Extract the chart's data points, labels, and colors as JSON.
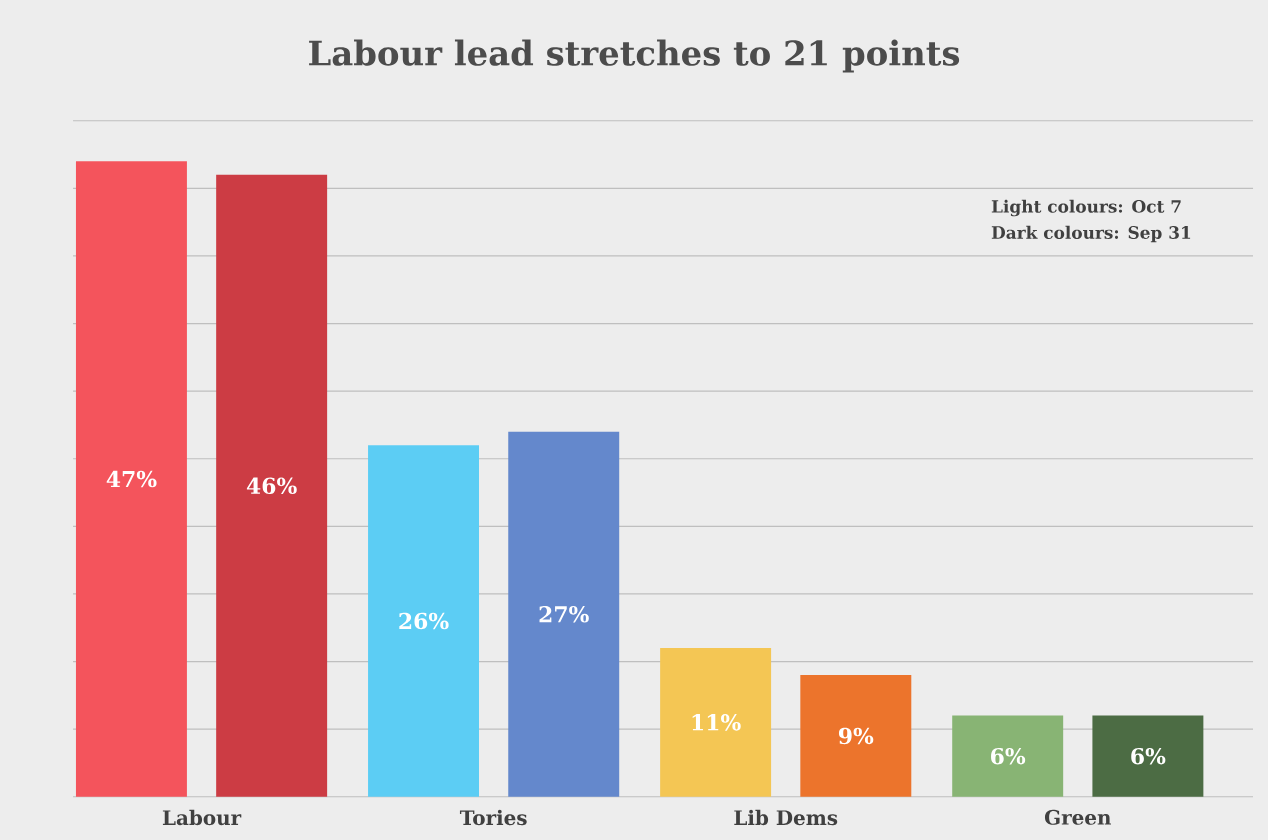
{
  "chart_data": {
    "type": "bar",
    "title": "Labour lead stretches to 21 points",
    "categories": [
      "Labour",
      "Tories",
      "Lib Dems",
      "Green"
    ],
    "series": [
      {
        "colors": [
          "#f4545c",
          "#5ccdf4",
          "#f4c654",
          "#88b474"
        ],
        "values": [
          47,
          26,
          11,
          6
        ],
        "value_labels": [
          "47%",
          "26%",
          "11%",
          "6%"
        ]
      },
      {
        "colors": [
          "#cc3c44",
          "#6488cc",
          "#ec742c",
          "#4c6c44"
        ],
        "values": [
          46,
          27,
          9,
          6
        ],
        "value_labels": [
          "46%",
          "27%",
          "9%",
          "6%"
        ]
      }
    ],
    "ylim": [
      0,
      50
    ],
    "yticks": [
      {
        "value": 0,
        "label": null
      },
      {
        "value": 5,
        "label": null
      },
      {
        "value": 10,
        "label": null
      },
      {
        "value": 15,
        "label": null
      },
      {
        "value": 20,
        "label": null
      },
      {
        "value": 25,
        "label": null
      },
      {
        "value": 30,
        "label": null
      },
      {
        "value": 35,
        "label": null
      },
      {
        "value": 40,
        "label": null
      },
      {
        "value": 45,
        "label": null
      },
      {
        "value": 50,
        "label": null
      }
    ],
    "grid": "y",
    "tick_labels": "x",
    "annotations": [
      "Light colours: Oct 7",
      "Dark colours: Sep 31"
    ]
  }
}
